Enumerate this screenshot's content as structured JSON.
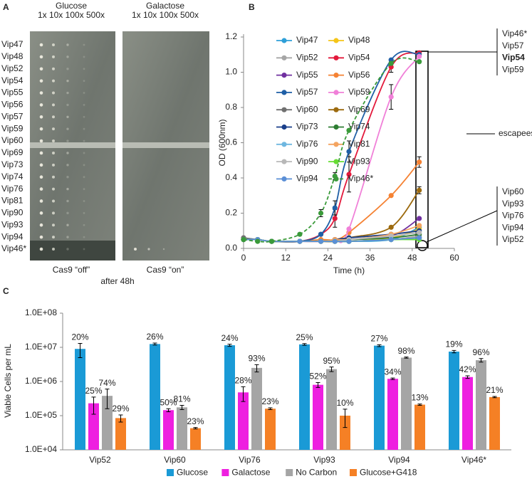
{
  "panel_a": {
    "label": "A",
    "headers": [
      {
        "title": "Glucose",
        "dilutions": "1x 10x 100x 500x",
        "color": "#e8202a"
      },
      {
        "title": "Galactose",
        "dilutions": "1x 10x 100x 500x",
        "color": "#8a3fc0"
      }
    ],
    "rows": [
      "Vip47",
      "Vip48",
      "Vip52",
      "Vip54",
      "Vip55",
      "Vip56",
      "Vip57",
      "Vip59",
      "Vip60",
      "Vip69",
      "Vip73",
      "Vip74",
      "Vip76",
      "Vip81",
      "Vip90",
      "Vip93",
      "Vip94",
      "Vip46*"
    ],
    "footers": [
      "Cas9 “off”",
      "Cas9 “on”"
    ],
    "caption": "after 48h"
  },
  "chart_data": [
    {
      "type": "line",
      "label": "B",
      "x_label": "Time (h)",
      "y_label": "OD (600nm)",
      "x": [
        0,
        4,
        8,
        16,
        22,
        26,
        30,
        42,
        50
      ],
      "xlim": [
        0,
        60
      ],
      "xticks": [
        0,
        12,
        24,
        36,
        48,
        60
      ],
      "ylim": [
        0,
        1.2
      ],
      "yticks": [
        {
          "value": 0,
          "label": "0.0"
        },
        0.2,
        0.4,
        0.6,
        0.8,
        {
          "value": 1,
          "label": "1.0"
        },
        1.2
      ],
      "grid": false,
      "legend": "top-left",
      "series": [
        {
          "name": "Vip47",
          "color": "#2e9fd8",
          "values": [
            0.05,
            0.05,
            0.04,
            0.04,
            0.04,
            0.04,
            0.04,
            0.05,
            0.12
          ]
        },
        {
          "name": "Vip48",
          "color": "#f5c518",
          "values": [
            0.05,
            0.05,
            0.04,
            0.04,
            0.04,
            0.04,
            0.05,
            0.06,
            0.11
          ]
        },
        {
          "name": "Vip52",
          "color": "#a6a6a6",
          "values": [
            0.06,
            0.05,
            0.04,
            0.04,
            0.04,
            0.04,
            0.04,
            0.05,
            0.07
          ]
        },
        {
          "name": "Vip54",
          "color": "#e31a3c",
          "values": [
            0.05,
            0.05,
            0.04,
            0.04,
            0.08,
            0.17,
            0.42,
            1.03,
            1.11
          ],
          "errors": [
            null,
            null,
            null,
            null,
            null,
            0.05,
            0.1,
            0.03,
            null
          ]
        },
        {
          "name": "Vip55",
          "color": "#7030a0",
          "values": [
            0.05,
            0.05,
            0.04,
            0.04,
            0.04,
            0.04,
            0.05,
            0.07,
            0.17
          ]
        },
        {
          "name": "Vip56",
          "color": "#f58233",
          "values": [
            0.05,
            0.05,
            0.04,
            0.04,
            0.05,
            0.05,
            0.09,
            0.3,
            0.49
          ],
          "errors": [
            null,
            null,
            null,
            null,
            null,
            null,
            null,
            null,
            0.03
          ]
        },
        {
          "name": "Vip57",
          "color": "#1f5fa6",
          "values": [
            0.05,
            0.05,
            0.04,
            0.04,
            0.08,
            0.23,
            0.55,
            1.07,
            1.1
          ],
          "errors": [
            null,
            null,
            null,
            null,
            null,
            0.04,
            0.06,
            null,
            null
          ]
        },
        {
          "name": "Vip59",
          "color": "#f080d8",
          "values": [
            0.05,
            0.05,
            0.04,
            0.04,
            0.04,
            0.05,
            0.11,
            0.86,
            1.09
          ],
          "errors": [
            null,
            null,
            null,
            null,
            null,
            null,
            null,
            0.07,
            null
          ]
        },
        {
          "name": "Vip60",
          "color": "#707070",
          "values": [
            0.06,
            0.05,
            0.04,
            0.04,
            0.04,
            0.04,
            0.04,
            0.05,
            0.06
          ]
        },
        {
          "name": "Vip69",
          "color": "#9c6a0e",
          "values": [
            0.05,
            0.05,
            0.04,
            0.04,
            0.04,
            0.04,
            0.06,
            0.12,
            0.33
          ],
          "errors": [
            null,
            null,
            null,
            null,
            null,
            null,
            null,
            null,
            0.02
          ]
        },
        {
          "name": "Vip73",
          "color": "#1a3f8a",
          "values": [
            0.05,
            0.05,
            0.04,
            0.04,
            0.04,
            0.05,
            0.06,
            0.08,
            0.1
          ]
        },
        {
          "name": "Vip74",
          "color": "#2e7d32",
          "values": [
            0.05,
            0.05,
            0.04,
            0.04,
            0.04,
            0.04,
            0.05,
            0.06,
            0.08
          ]
        },
        {
          "name": "Vip76",
          "color": "#6fb7e0",
          "values": [
            0.05,
            0.05,
            0.04,
            0.04,
            0.04,
            0.04,
            0.04,
            0.05,
            0.06
          ]
        },
        {
          "name": "Vip81",
          "color": "#f4a460",
          "values": [
            0.05,
            0.05,
            0.04,
            0.04,
            0.04,
            0.05,
            0.05,
            0.08,
            0.13
          ]
        },
        {
          "name": "Vip90",
          "color": "#b8b8b8",
          "values": [
            0.05,
            0.05,
            0.04,
            0.04,
            0.04,
            0.04,
            0.05,
            0.07,
            0.09
          ]
        },
        {
          "name": "Vip93",
          "color": "#66dd33",
          "values": [
            0.05,
            0.05,
            0.04,
            0.04,
            0.04,
            0.04,
            0.04,
            0.05,
            0.05
          ]
        },
        {
          "name": "Vip94",
          "color": "#5b8fd6",
          "values": [
            0.05,
            0.05,
            0.04,
            0.04,
            0.04,
            0.04,
            0.04,
            0.05,
            0.06
          ]
        },
        {
          "name": "Vip46*",
          "color": "#3a9a3a",
          "line_style": "dashed",
          "values": [
            0.05,
            0.04,
            0.04,
            0.08,
            0.2,
            0.41,
            0.67,
            1.05,
            1.06
          ],
          "errors": [
            null,
            null,
            null,
            null,
            0.02,
            0.02,
            null,
            null,
            null
          ]
        }
      ],
      "annotations": {
        "escapee_labels": [
          {
            "text": "Vip46*",
            "bold": false
          },
          {
            "text": "Vip57",
            "bold": false
          },
          {
            "text": "Vip54",
            "bold": true
          },
          {
            "text": "Vip59",
            "bold": false
          }
        ],
        "escapees": "escapees",
        "other_labels": [
          "Vip60",
          "Vip93",
          "Vip76",
          "Vip94",
          "Vip52"
        ]
      }
    },
    {
      "type": "bar",
      "label": "C",
      "y_label": "Viable Cells per mL",
      "categories": [
        "Vip52",
        "Vip60",
        "Vip76",
        "Vip93",
        "Vip94",
        "Vip46*"
      ],
      "log_scale": true,
      "ylim": [
        10000,
        100000000
      ],
      "yticks": [
        {
          "value": 10000,
          "label": "1.0E+04"
        },
        {
          "value": 100000,
          "label": "1.0E+05"
        },
        {
          "value": 1000000,
          "label": "1.0E+06"
        },
        {
          "value": 10000000,
          "label": "1.0E+07"
        },
        {
          "value": 100000000,
          "label": "1.0E+08"
        }
      ],
      "grid": false,
      "legend": "bottom",
      "series": [
        {
          "name": "Glucose",
          "color": "#1a9ad6",
          "label_color": "#2a6ebb",
          "values": [
            9000000,
            12500000,
            11500000,
            12200000,
            11200000,
            7500000
          ],
          "errors": [
            4000000,
            800000,
            800000,
            700000,
            700000,
            600000
          ],
          "percent_labels": [
            "20%",
            "26%",
            "24%",
            "25%",
            "27%",
            "19%"
          ]
        },
        {
          "name": "Galactose",
          "color": "#ee1fe0",
          "label_color": "#ee1fe0",
          "values": [
            230000,
            145000,
            480000,
            800000,
            1200000,
            1350000
          ],
          "errors": [
            120000,
            15000,
            220000,
            130000,
            60000,
            120000
          ],
          "percent_labels": [
            "25%",
            "50%",
            "28%",
            "52%",
            "34%",
            "42%"
          ]
        },
        {
          "name": "No Carbon",
          "color": "#a5a5a5",
          "label_color": "#8c8c8c",
          "values": [
            380000,
            175000,
            2500000,
            2300000,
            5000000,
            4200000
          ],
          "errors": [
            220000,
            25000,
            600000,
            350000,
            200000,
            500000
          ],
          "percent_labels": [
            "74%",
            "81%",
            "93%",
            "95%",
            "98%",
            "96%"
          ]
        },
        {
          "name": "Glucose+G418",
          "color": "#f58025",
          "label_color": "#e06a10",
          "values": [
            85000,
            43000,
            160000,
            100000,
            210000,
            350000
          ],
          "errors": [
            20000,
            2000,
            10000,
            55000,
            10000,
            15000
          ],
          "percent_labels": [
            "29%",
            "23%",
            "23%",
            "10%",
            "13%",
            "21%"
          ]
        }
      ]
    }
  ]
}
